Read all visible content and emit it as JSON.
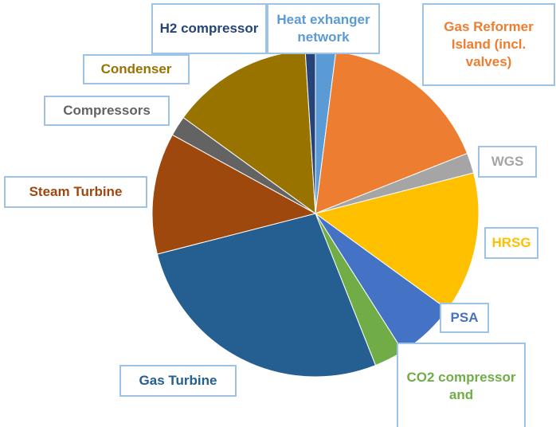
{
  "chart_data": {
    "type": "pie",
    "categories": [
      "Heat exhanger network",
      "Gas Reformer Island (incl. valves)",
      "WGS",
      "HRSG",
      "PSA",
      "CO2 compressor and",
      "Gas Turbine",
      "Steam Turbine",
      "Compressors",
      "Condenser",
      "H2 compressor"
    ],
    "values": [
      2,
      17,
      2,
      14,
      6,
      3,
      27,
      12,
      2,
      14,
      1
    ],
    "colors": [
      "#5b9bd5",
      "#ed7d31",
      "#a5a5a5",
      "#ffc000",
      "#4472c4",
      "#70ad47",
      "#255e91",
      "#9e480e",
      "#636363",
      "#997300",
      "#264478"
    ]
  }
}
